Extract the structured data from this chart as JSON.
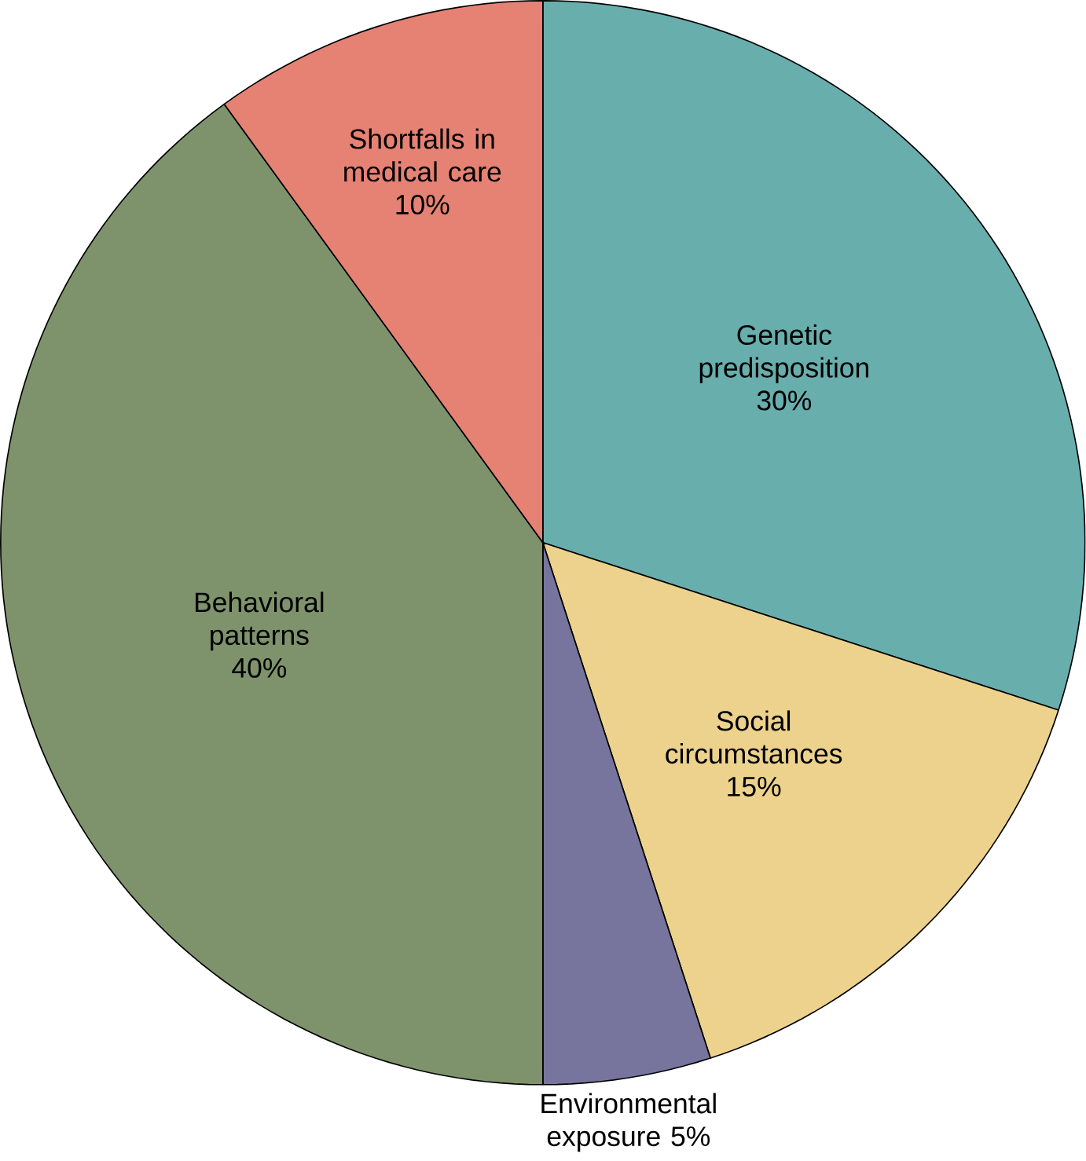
{
  "chart_data": {
    "type": "pie",
    "categories": [
      "Genetic predisposition",
      "Social circumstances",
      "Environmental exposure",
      "Behavioral patterns",
      "Shortfalls in medical care"
    ],
    "values": [
      30,
      15,
      5,
      40,
      10
    ],
    "value_labels": [
      "30%",
      "15%",
      "5%",
      "40%",
      "10%"
    ],
    "colors": [
      "#68aead",
      "#ecd28c",
      "#77759e",
      "#7e936c",
      "#e58274"
    ]
  }
}
